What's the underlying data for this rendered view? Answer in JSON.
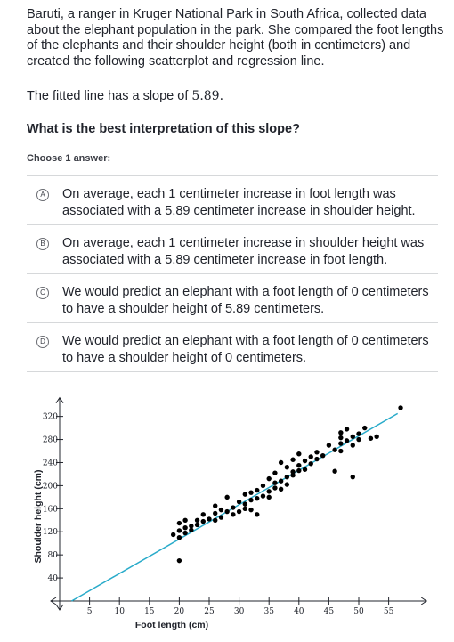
{
  "passage": {
    "line1": "Baruti, a ranger in Kruger National Park in South Africa, collected data",
    "line2": "about the elephant population in the park. She compared the foot lengths",
    "line3": "of the elephants and their shoulder height (both in centimeters) and",
    "line4": "created the following scatterplot and regression line."
  },
  "slope_text": "The fitted line has a slope of",
  "slope_value": "5.89.",
  "question": "What is the best interpretation of this slope?",
  "choose_label": "Choose 1 answer:",
  "choices": [
    {
      "letter": "A",
      "line1": "On average, each 1 centimeter increase in foot length was",
      "line2": "associated with a 5.89 centimeter increase in shoulder height."
    },
    {
      "letter": "B",
      "line1": "On average, each 1 centimeter increase in shoulder height was",
      "line2": "associated with a 5.89 centimeter increase in foot length."
    },
    {
      "letter": "C",
      "line1": "We would predict an elephant with a foot length of 0 centimeters",
      "line2": "to have a shoulder height of 5.89 centimeters."
    },
    {
      "letter": "D",
      "line1": "We would predict an elephant with a foot length of 0 centimeters",
      "line2": "to have a shoulder height of 0 centimeters."
    }
  ],
  "chart_data": {
    "type": "scatter",
    "xlabel": "Foot length (cm)",
    "ylabel": "Shoulder height (cm)",
    "x_ticks": [
      5,
      10,
      15,
      20,
      25,
      30,
      35,
      40,
      45,
      50,
      55
    ],
    "y_ticks": [
      40,
      80,
      120,
      160,
      200,
      240,
      280,
      320
    ],
    "xlim": [
      0,
      60
    ],
    "ylim": [
      0,
      340
    ],
    "line_color": "#29abca",
    "point_color": "#000000",
    "regression_line": {
      "x0": 2,
      "y0": 0,
      "x1": 56.5,
      "y1": 325
    },
    "points": [
      [
        20,
        70
      ],
      [
        20,
        110
      ],
      [
        19,
        115
      ],
      [
        21,
        118
      ],
      [
        20,
        122
      ],
      [
        22,
        123
      ],
      [
        21,
        127
      ],
      [
        22,
        130
      ],
      [
        23,
        132
      ],
      [
        20,
        135
      ],
      [
        21,
        140
      ],
      [
        23,
        140
      ],
      [
        24,
        138
      ],
      [
        25,
        142
      ],
      [
        26,
        140
      ],
      [
        27,
        145
      ],
      [
        24,
        150
      ],
      [
        26,
        152
      ],
      [
        28,
        155
      ],
      [
        29,
        150
      ],
      [
        27,
        158
      ],
      [
        30,
        155
      ],
      [
        29,
        162
      ],
      [
        31,
        160
      ],
      [
        32,
        158
      ],
      [
        33,
        150
      ],
      [
        31,
        168
      ],
      [
        30,
        172
      ],
      [
        32,
        175
      ],
      [
        28,
        180
      ],
      [
        33,
        178
      ],
      [
        34,
        182
      ],
      [
        35,
        180
      ],
      [
        32,
        188
      ],
      [
        33,
        192
      ],
      [
        35,
        190
      ],
      [
        36,
        196
      ],
      [
        37,
        194
      ],
      [
        34,
        200
      ],
      [
        36,
        205
      ],
      [
        38,
        202
      ],
      [
        37,
        208
      ],
      [
        35,
        212
      ],
      [
        38,
        215
      ],
      [
        39,
        218
      ],
      [
        36,
        222
      ],
      [
        39,
        224
      ],
      [
        40,
        226
      ],
      [
        41,
        228
      ],
      [
        38,
        232
      ],
      [
        40,
        235
      ],
      [
        42,
        238
      ],
      [
        37,
        240
      ],
      [
        39,
        245
      ],
      [
        41,
        243
      ],
      [
        43,
        246
      ],
      [
        42,
        250
      ],
      [
        44,
        252
      ],
      [
        40,
        255
      ],
      [
        43,
        258
      ],
      [
        46,
        262
      ],
      [
        47,
        260
      ],
      [
        45,
        270
      ],
      [
        47,
        273
      ],
      [
        49,
        270
      ],
      [
        48,
        278
      ],
      [
        50,
        280
      ],
      [
        47,
        283
      ],
      [
        49,
        285
      ],
      [
        52,
        282
      ],
      [
        53,
        285
      ],
      [
        50,
        290
      ],
      [
        47,
        292
      ],
      [
        48,
        298
      ],
      [
        51,
        300
      ],
      [
        57,
        335
      ],
      [
        46,
        225
      ],
      [
        49,
        215
      ],
      [
        26,
        165
      ],
      [
        31,
        185
      ]
    ]
  }
}
